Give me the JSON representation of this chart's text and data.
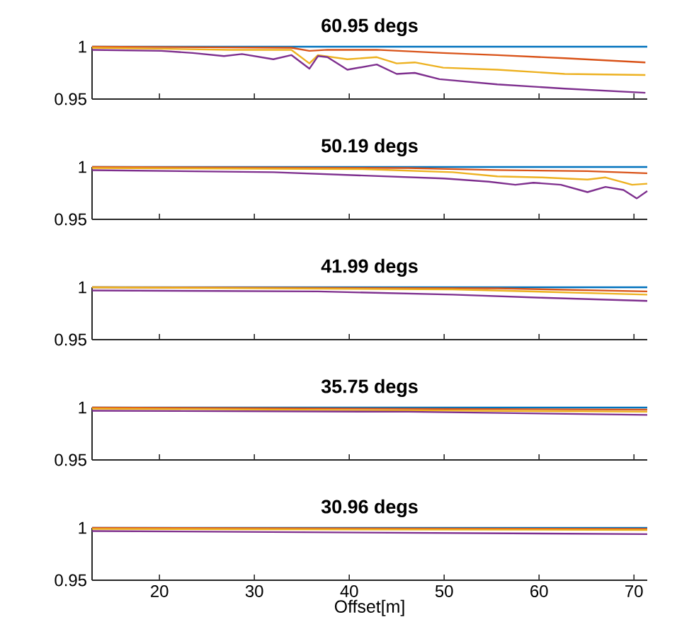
{
  "chart_data": [
    {
      "type": "line",
      "title": "60.95 degs",
      "xlim": [
        12.9,
        71.4
      ],
      "ylim": [
        0.95,
        1
      ],
      "xticks": [
        20,
        30,
        40,
        50,
        60,
        70
      ],
      "yticks": [
        0.95,
        1
      ],
      "tick_labels": "y",
      "series": [
        {
          "color": "#0072bd",
          "x": [
            12.9,
            71.4
          ],
          "values": [
            1.0,
            1.0
          ]
        },
        {
          "color": "#d95319",
          "x": [
            12.9,
            33.9,
            35.8,
            37.7,
            42.9,
            49.9,
            55.6,
            62.7,
            71.2
          ],
          "values": [
            1.0,
            0.999,
            0.996,
            0.997,
            0.997,
            0.994,
            0.992,
            0.989,
            0.985
          ]
        },
        {
          "color": "#edb120",
          "x": [
            12.9,
            27.3,
            33.9,
            35.8,
            36.7,
            39.8,
            42.9,
            45.0,
            46.9,
            49.9,
            55.6,
            62.7,
            71.2
          ],
          "values": [
            0.999,
            0.997,
            0.997,
            0.984,
            0.992,
            0.988,
            0.99,
            0.984,
            0.985,
            0.98,
            0.978,
            0.974,
            0.973
          ]
        },
        {
          "color": "#7e2f8e",
          "x": [
            12.9,
            20.2,
            23.5,
            26.8,
            28.7,
            32.0,
            33.9,
            35.8,
            36.7,
            37.7,
            39.8,
            42.9,
            45.0,
            46.9,
            49.5,
            55.6,
            62.7,
            71.2
          ],
          "values": [
            0.997,
            0.996,
            0.994,
            0.991,
            0.993,
            0.988,
            0.992,
            0.979,
            0.991,
            0.99,
            0.978,
            0.983,
            0.974,
            0.975,
            0.969,
            0.964,
            0.96,
            0.956
          ]
        }
      ]
    },
    {
      "type": "line",
      "title": "50.19 degs",
      "xlim": [
        12.9,
        71.4
      ],
      "ylim": [
        0.95,
        1
      ],
      "xticks": [
        20,
        30,
        40,
        50,
        60,
        70
      ],
      "yticks": [
        0.95,
        1
      ],
      "tick_labels": "y",
      "series": [
        {
          "color": "#0072bd",
          "x": [
            12.9,
            71.4
          ],
          "values": [
            1.0,
            1.0
          ]
        },
        {
          "color": "#d95319",
          "x": [
            12.9,
            46.2,
            55.6,
            65.1,
            71.4
          ],
          "values": [
            1.0,
            0.999,
            0.997,
            0.996,
            0.994
          ]
        },
        {
          "color": "#edb120",
          "x": [
            12.9,
            41.4,
            50.9,
            55.6,
            60.3,
            65.1,
            67.0,
            69.8,
            71.4
          ],
          "values": [
            0.999,
            0.998,
            0.995,
            0.991,
            0.99,
            0.988,
            0.99,
            0.983,
            0.984
          ]
        },
        {
          "color": "#7e2f8e",
          "x": [
            12.9,
            32.0,
            50.0,
            54.7,
            57.5,
            59.4,
            62.3,
            65.1,
            67.0,
            68.9,
            70.3,
            71.4
          ],
          "values": [
            0.997,
            0.995,
            0.989,
            0.986,
            0.983,
            0.985,
            0.983,
            0.976,
            0.981,
            0.978,
            0.97,
            0.977
          ]
        }
      ]
    },
    {
      "type": "line",
      "title": "41.99 degs",
      "xlim": [
        12.9,
        71.4
      ],
      "ylim": [
        0.95,
        1
      ],
      "xticks": [
        20,
        30,
        40,
        50,
        60,
        70
      ],
      "yticks": [
        0.95,
        1
      ],
      "tick_labels": "y",
      "series": [
        {
          "color": "#0072bd",
          "x": [
            12.9,
            71.4
          ],
          "values": [
            1.0,
            1.0
          ]
        },
        {
          "color": "#d95319",
          "x": [
            12.9,
            55.6,
            71.4
          ],
          "values": [
            1.0,
            0.999,
            0.996
          ]
        },
        {
          "color": "#edb120",
          "x": [
            12.9,
            50.9,
            71.4
          ],
          "values": [
            1.0,
            0.998,
            0.993
          ]
        },
        {
          "color": "#7e2f8e",
          "x": [
            12.9,
            36.7,
            50.9,
            60.3,
            71.4
          ],
          "values": [
            0.997,
            0.996,
            0.993,
            0.99,
            0.987
          ]
        }
      ]
    },
    {
      "type": "line",
      "title": "35.75 degs",
      "xlim": [
        12.9,
        71.4
      ],
      "ylim": [
        0.95,
        1
      ],
      "xticks": [
        20,
        30,
        40,
        50,
        60,
        70
      ],
      "yticks": [
        0.95,
        1
      ],
      "tick_labels": "y",
      "series": [
        {
          "color": "#0072bd",
          "x": [
            12.9,
            71.4
          ],
          "values": [
            1.0,
            1.0
          ]
        },
        {
          "color": "#d95319",
          "x": [
            12.9,
            71.4
          ],
          "values": [
            1.0,
            0.998
          ]
        },
        {
          "color": "#edb120",
          "x": [
            12.9,
            71.4
          ],
          "values": [
            0.999,
            0.996
          ]
        },
        {
          "color": "#7e2f8e",
          "x": [
            12.9,
            46.2,
            71.4
          ],
          "values": [
            0.997,
            0.996,
            0.993
          ]
        }
      ]
    },
    {
      "type": "line",
      "title": "30.96 degs",
      "xlabel": "Offset[m]",
      "xlim": [
        12.9,
        71.4
      ],
      "ylim": [
        0.95,
        1
      ],
      "xticks": [
        20,
        30,
        40,
        50,
        60,
        70
      ],
      "yticks": [
        0.95,
        1
      ],
      "series": [
        {
          "color": "#0072bd",
          "x": [
            12.9,
            71.4
          ],
          "values": [
            1.0,
            1.0
          ]
        },
        {
          "color": "#d95319",
          "x": [
            12.9,
            71.4
          ],
          "values": [
            1.0,
            0.999
          ]
        },
        {
          "color": "#edb120",
          "x": [
            12.9,
            71.4
          ],
          "values": [
            0.999,
            0.998
          ]
        },
        {
          "color": "#7e2f8e",
          "x": [
            12.9,
            71.4
          ],
          "values": [
            0.997,
            0.994
          ]
        }
      ]
    }
  ]
}
